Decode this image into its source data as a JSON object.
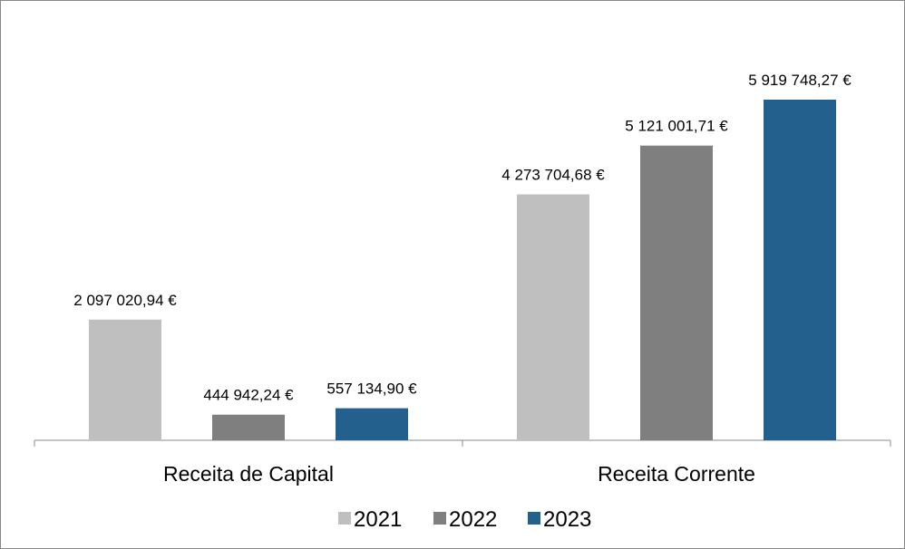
{
  "chart_data": {
    "type": "bar",
    "categories": [
      "Receita de Capital",
      "Receita Corrente"
    ],
    "series": [
      {
        "name": "2021",
        "color": "#bfbfbf",
        "values": [
          2097020.94,
          4273704.68
        ],
        "value_labels": [
          "2 097 020,94 €",
          "4 273 704,68 €"
        ]
      },
      {
        "name": "2022",
        "color": "#7f7f7f",
        "values": [
          444942.24,
          5121001.71
        ],
        "value_labels": [
          "444 942,24 €",
          "5 121 001,71 €"
        ]
      },
      {
        "name": "2023",
        "color": "#23608e",
        "values": [
          557134.9,
          5919748.27
        ],
        "value_labels": [
          "557 134,90 €",
          "5 919 748,27 €"
        ]
      }
    ],
    "legend": "bottom"
  }
}
